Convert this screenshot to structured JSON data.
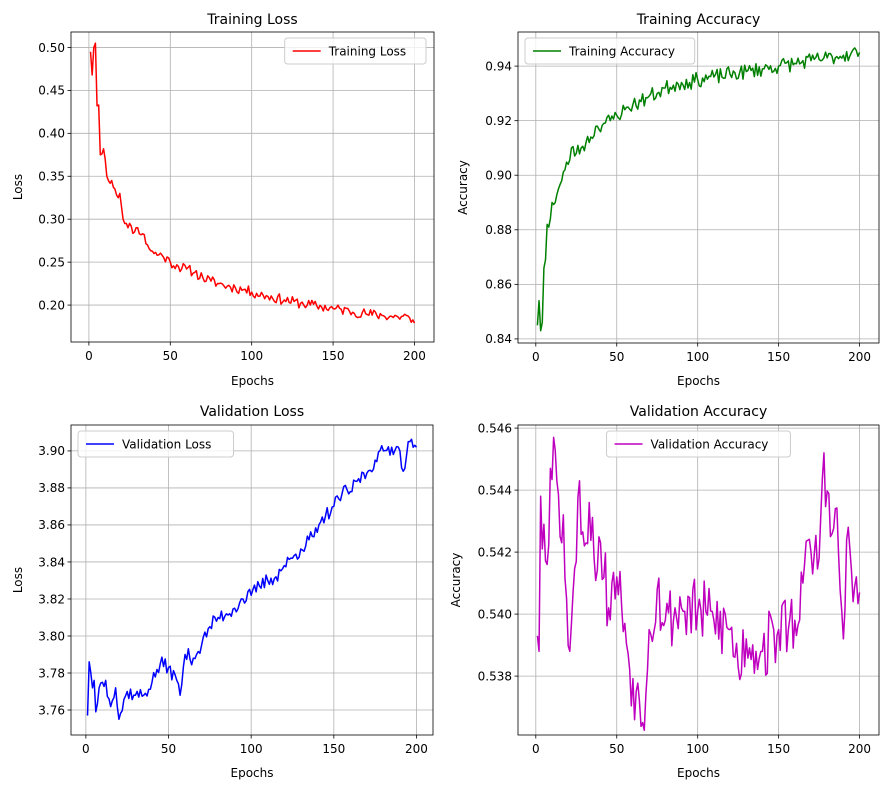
{
  "chart_data": [
    {
      "type": "line",
      "title": "Training Loss",
      "xlabel": "Epochs",
      "ylabel": "Loss",
      "xlim": [
        -11,
        212
      ],
      "ylim": [
        0.157,
        0.518
      ],
      "xticks": [
        0,
        50,
        100,
        150,
        200
      ],
      "yticks": [
        0.2,
        0.25,
        0.3,
        0.35,
        0.4,
        0.45,
        0.5
      ],
      "ytick_labels": [
        "0.20",
        "0.25",
        "0.30",
        "0.35",
        "0.40",
        "0.45",
        "0.50"
      ],
      "grid": true,
      "legend_position": "upper-right",
      "series": [
        {
          "name": "Training Loss",
          "color": "#ff0000",
          "keypoints": [
            [
              1,
              0.495
            ],
            [
              2,
              0.468
            ],
            [
              3,
              0.5
            ],
            [
              4,
              0.505
            ],
            [
              5,
              0.432
            ],
            [
              6,
              0.433
            ],
            [
              7,
              0.375
            ],
            [
              8,
              0.376
            ],
            [
              9,
              0.382
            ],
            [
              10,
              0.37
            ],
            [
              11,
              0.35
            ],
            [
              12,
              0.345
            ],
            [
              14,
              0.345
            ],
            [
              16,
              0.335
            ],
            [
              18,
              0.325
            ],
            [
              19,
              0.33
            ],
            [
              20,
              0.315
            ],
            [
              22,
              0.295
            ],
            [
              24,
              0.29
            ],
            [
              26,
              0.292
            ],
            [
              28,
              0.285
            ],
            [
              30,
              0.29
            ],
            [
              33,
              0.283
            ],
            [
              36,
              0.27
            ],
            [
              40,
              0.26
            ],
            [
              45,
              0.258
            ],
            [
              50,
              0.25
            ],
            [
              55,
              0.245
            ],
            [
              60,
              0.242
            ],
            [
              65,
              0.238
            ],
            [
              70,
              0.232
            ],
            [
              75,
              0.228
            ],
            [
              80,
              0.225
            ],
            [
              85,
              0.222
            ],
            [
              90,
              0.22
            ],
            [
              95,
              0.218
            ],
            [
              100,
              0.215
            ],
            [
              110,
              0.21
            ],
            [
              120,
              0.206
            ],
            [
              130,
              0.202
            ],
            [
              140,
              0.199
            ],
            [
              150,
              0.196
            ],
            [
              160,
              0.193
            ],
            [
              170,
              0.19
            ],
            [
              180,
              0.188
            ],
            [
              190,
              0.186
            ],
            [
              195,
              0.188
            ],
            [
              198,
              0.18
            ],
            [
              200,
              0.179
            ]
          ],
          "noise_amplitude": 0.006,
          "noise_seed": 11
        }
      ]
    },
    {
      "type": "line",
      "title": "Training Accuracy",
      "xlabel": "Epochs",
      "ylabel": "Accuracy",
      "xlim": [
        -11,
        212
      ],
      "ylim": [
        0.8385,
        0.9525
      ],
      "xticks": [
        0,
        50,
        100,
        150,
        200
      ],
      "yticks": [
        0.84,
        0.86,
        0.88,
        0.9,
        0.92,
        0.94
      ],
      "ytick_labels": [
        "0.84",
        "0.86",
        "0.88",
        "0.90",
        "0.92",
        "0.94"
      ],
      "grid": true,
      "legend_position": "upper-left",
      "series": [
        {
          "name": "Training Accuracy",
          "color": "#008000",
          "keypoints": [
            [
              1,
              0.845
            ],
            [
              2,
              0.854
            ],
            [
              3,
              0.843
            ],
            [
              4,
              0.846
            ],
            [
              5,
              0.866
            ],
            [
              6,
              0.869
            ],
            [
              7,
              0.882
            ],
            [
              8,
              0.881
            ],
            [
              10,
              0.89
            ],
            [
              12,
              0.89
            ],
            [
              14,
              0.895
            ],
            [
              16,
              0.898
            ],
            [
              18,
              0.902
            ],
            [
              20,
              0.904
            ],
            [
              22,
              0.91
            ],
            [
              25,
              0.908
            ],
            [
              28,
              0.91
            ],
            [
              31,
              0.912
            ],
            [
              34,
              0.914
            ],
            [
              38,
              0.918
            ],
            [
              42,
              0.919
            ],
            [
              46,
              0.92
            ],
            [
              50,
              0.922
            ],
            [
              55,
              0.924
            ],
            [
              60,
              0.926
            ],
            [
              65,
              0.927
            ],
            [
              70,
              0.929
            ],
            [
              75,
              0.93
            ],
            [
              80,
              0.932
            ],
            [
              85,
              0.933
            ],
            [
              90,
              0.934
            ],
            [
              95,
              0.934
            ],
            [
              100,
              0.935
            ],
            [
              110,
              0.936
            ],
            [
              120,
              0.937
            ],
            [
              130,
              0.938
            ],
            [
              140,
              0.939
            ],
            [
              150,
              0.94
            ],
            [
              160,
              0.941
            ],
            [
              170,
              0.942
            ],
            [
              180,
              0.943
            ],
            [
              190,
              0.944
            ],
            [
              195,
              0.945
            ],
            [
              200,
              0.945
            ]
          ],
          "noise_amplitude": 0.0028,
          "noise_seed": 23
        }
      ]
    },
    {
      "type": "line",
      "title": "Validation Loss",
      "xlabel": "Epochs",
      "ylabel": "Loss",
      "xlim": [
        -9,
        210
      ],
      "ylim": [
        3.7465,
        3.914
      ],
      "xticks": [
        0,
        50,
        100,
        150,
        200
      ],
      "yticks": [
        3.76,
        3.78,
        3.8,
        3.82,
        3.84,
        3.86,
        3.88,
        3.9
      ],
      "ytick_labels": [
        "3.76",
        "3.78",
        "3.80",
        "3.82",
        "3.84",
        "3.86",
        "3.88",
        "3.90"
      ],
      "grid": true,
      "legend_position": "upper-left",
      "series": [
        {
          "name": "Validation Loss",
          "color": "#0000ff",
          "keypoints": [
            [
              1,
              3.757
            ],
            [
              2,
              3.786
            ],
            [
              3,
              3.78
            ],
            [
              4,
              3.772
            ],
            [
              5,
              3.776
            ],
            [
              6,
              3.759
            ],
            [
              8,
              3.772
            ],
            [
              10,
              3.775
            ],
            [
              12,
              3.776
            ],
            [
              14,
              3.766
            ],
            [
              16,
              3.765
            ],
            [
              18,
              3.772
            ],
            [
              20,
              3.755
            ],
            [
              25,
              3.77
            ],
            [
              30,
              3.768
            ],
            [
              35,
              3.768
            ],
            [
              40,
              3.775
            ],
            [
              45,
              3.785
            ],
            [
              50,
              3.783
            ],
            [
              55,
              3.776
            ],
            [
              57,
              3.768
            ],
            [
              60,
              3.79
            ],
            [
              65,
              3.788
            ],
            [
              70,
              3.795
            ],
            [
              75,
              3.805
            ],
            [
              80,
              3.81
            ],
            [
              85,
              3.812
            ],
            [
              90,
              3.815
            ],
            [
              95,
              3.82
            ],
            [
              100,
              3.822
            ],
            [
              105,
              3.827
            ],
            [
              110,
              3.83
            ],
            [
              115,
              3.832
            ],
            [
              120,
              3.838
            ],
            [
              125,
              3.842
            ],
            [
              130,
              3.847
            ],
            [
              135,
              3.852
            ],
            [
              140,
              3.856
            ],
            [
              145,
              3.865
            ],
            [
              150,
              3.87
            ],
            [
              155,
              3.877
            ],
            [
              160,
              3.878
            ],
            [
              165,
              3.885
            ],
            [
              170,
              3.888
            ],
            [
              175,
              3.895
            ],
            [
              180,
              3.9
            ],
            [
              185,
              3.902
            ],
            [
              190,
              3.9
            ],
            [
              192,
              3.889
            ],
            [
              195,
              3.905
            ],
            [
              198,
              3.902
            ],
            [
              200,
              3.902
            ]
          ],
          "noise_amplitude": 0.004,
          "noise_seed": 37
        }
      ]
    },
    {
      "type": "line",
      "title": "Validation Accuracy",
      "xlabel": "Epochs",
      "ylabel": "Accuracy",
      "xlim": [
        -11,
        212
      ],
      "ylim": [
        0.5361,
        0.5461
      ],
      "xticks": [
        0,
        50,
        100,
        150,
        200
      ],
      "yticks": [
        0.538,
        0.54,
        0.542,
        0.544,
        0.546
      ],
      "ytick_labels": [
        "0.538",
        "0.540",
        "0.542",
        "0.544",
        "0.546"
      ],
      "grid": true,
      "legend_position": "upper-center",
      "series": [
        {
          "name": "Validation Accuracy",
          "color": "#bf00bf",
          "keypoints": [
            [
              1,
              0.5393
            ],
            [
              2,
              0.5388
            ],
            [
              3,
              0.5438
            ],
            [
              4,
              0.5421
            ],
            [
              5,
              0.5429
            ],
            [
              7,
              0.5416
            ],
            [
              9,
              0.5447
            ],
            [
              11,
              0.5457
            ],
            [
              13,
              0.5443
            ],
            [
              15,
              0.5425
            ],
            [
              17,
              0.5432
            ],
            [
              19,
              0.5405
            ],
            [
              21,
              0.5388
            ],
            [
              23,
              0.5407
            ],
            [
              25,
              0.5417
            ],
            [
              27,
              0.5443
            ],
            [
              30,
              0.5422
            ],
            [
              33,
              0.5436
            ],
            [
              36,
              0.5418
            ],
            [
              40,
              0.5423
            ],
            [
              45,
              0.5402
            ],
            [
              50,
              0.5412
            ],
            [
              55,
              0.5397
            ],
            [
              58,
              0.5382
            ],
            [
              62,
              0.5375
            ],
            [
              66,
              0.5365
            ],
            [
              70,
              0.5395
            ],
            [
              75,
              0.5408
            ],
            [
              80,
              0.5398
            ],
            [
              90,
              0.5402
            ],
            [
              100,
              0.5401
            ],
            [
              110,
              0.5398
            ],
            [
              120,
              0.5395
            ],
            [
              125,
              0.5383
            ],
            [
              130,
              0.5392
            ],
            [
              140,
              0.5388
            ],
            [
              150,
              0.5395
            ],
            [
              160,
              0.5398
            ],
            [
              165,
              0.541
            ],
            [
              170,
              0.542
            ],
            [
              175,
              0.5418
            ],
            [
              178,
              0.5452
            ],
            [
              182,
              0.5425
            ],
            [
              185,
              0.5434
            ],
            [
              190,
              0.5392
            ],
            [
              193,
              0.5428
            ],
            [
              196,
              0.5404
            ],
            [
              198,
              0.5412
            ],
            [
              200,
              0.5407
            ]
          ],
          "noise_amplitude": 0.0011,
          "noise_seed": 53
        }
      ]
    }
  ]
}
